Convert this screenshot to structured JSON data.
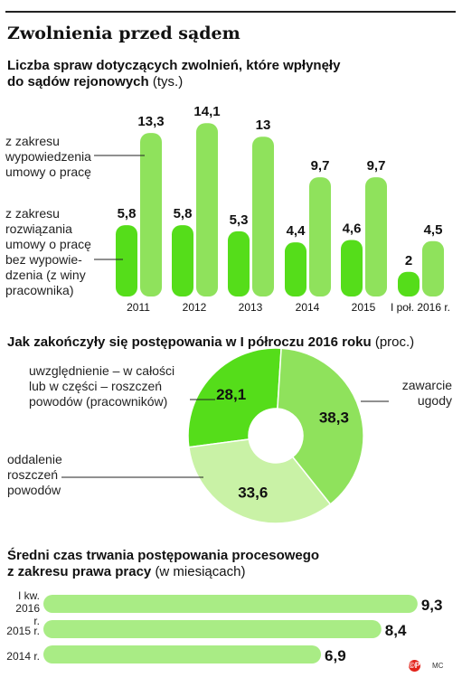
{
  "title": "Zwolnienia przed sądem",
  "colors": {
    "dark_green": "#55dd1a",
    "light_green": "#8fe25c",
    "pale_green": "#c9f2a6",
    "track": "#a9ec85"
  },
  "section1": {
    "title_bold_1": "Liczba spraw dotyczących zwolnień, które wpłynęły",
    "title_bold_2": "do sądów rejonowych",
    "unit": "(tys.)",
    "label_termination_1": "z zakresu",
    "label_termination_2": "wypowiedzenia",
    "label_termination_3": "umowy o pracę",
    "label_dissolution_1": "z zakresu",
    "label_dissolution_2": "rozwiązania",
    "label_dissolution_3": "umowy o pracę",
    "label_dissolution_4": "bez wypowie-",
    "label_dissolution_5": "dzenia (z winy",
    "label_dissolution_6": "pracownika)"
  },
  "section2": {
    "title_bold": "Jak zakończyły się postępowania w I półroczu 2016 roku",
    "unit": "(proc.)",
    "label_a_1": "uwzględnienie – w całości",
    "label_a_2": "lub w części – roszczeń",
    "label_a_3": "powodów (pracowników)",
    "label_b_1": "zawarcie",
    "label_b_2": "ugody",
    "label_c_1": "oddalenie",
    "label_c_2": "roszczeń",
    "label_c_3": "powodów"
  },
  "section3": {
    "title_bold_1": "Średni czas trwania postępowania procesowego",
    "title_bold_2": "z zakresu prawa pracy",
    "unit": "(w miesiącach)",
    "label_row1_1": "I kw.",
    "label_row1_2": "2016 r.",
    "label_row2": "2015 r.",
    "label_row3": "2014 r."
  },
  "footer": {
    "logo": "©P",
    "credit": "MC"
  },
  "chart_data": [
    {
      "type": "bar",
      "categories": [
        "2011",
        "2012",
        "2013",
        "2014",
        "2015",
        "I poł. 2016 r."
      ],
      "series": [
        {
          "name": "z zakresu rozwiązania umowy o pracę bez wypowiedzenia (z winy pracownika)",
          "values": [
            5.8,
            5.8,
            5.3,
            4.4,
            4.6,
            2
          ],
          "labels": [
            "5,8",
            "5,8",
            "5,3",
            "4,4",
            "4,6",
            "2"
          ]
        },
        {
          "name": "z zakresu wypowiedzenia umowy o pracę",
          "values": [
            13.3,
            14.1,
            13,
            9.7,
            9.7,
            4.5
          ],
          "labels": [
            "13,3",
            "14,1",
            "13",
            "9,7",
            "9,7",
            "4,5"
          ]
        }
      ]
    },
    {
      "type": "pie",
      "categories": [
        "uwzględnienie – w całości lub w części – roszczeń powodów (pracowników)",
        "zawarcie ugody",
        "oddalenie roszczeń powodów"
      ],
      "values": [
        28.1,
        38.3,
        33.6
      ],
      "labels": [
        "28,1",
        "38,3",
        "33,6"
      ]
    },
    {
      "type": "bar",
      "categories": [
        "I kw. 2016 r.",
        "2015 r.",
        "2014 r."
      ],
      "values": [
        9.3,
        8.4,
        6.9
      ],
      "labels": [
        "9,3",
        "8,4",
        "6,9"
      ]
    }
  ]
}
